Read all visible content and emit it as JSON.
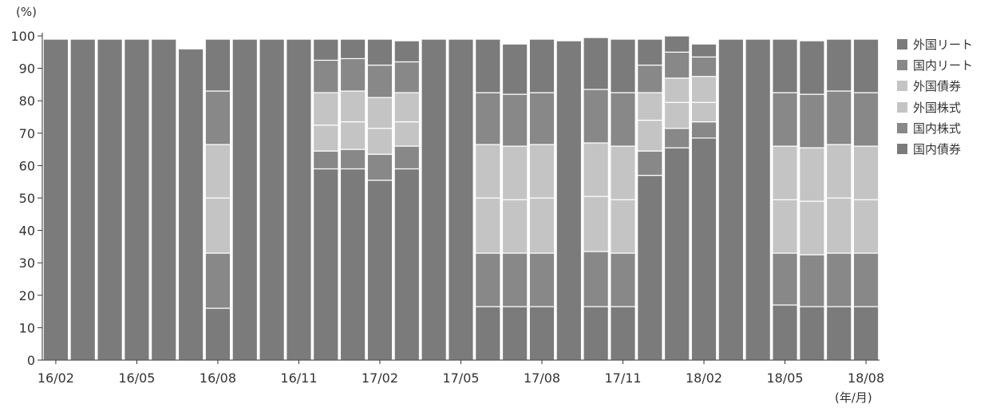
{
  "chart_data": {
    "type": "bar",
    "stacked": true,
    "y_unit": "(%)",
    "x_unit": "(年/月)",
    "ylim": [
      0,
      100
    ],
    "y_ticks": [
      "0",
      "10",
      "20",
      "30",
      "40",
      "50",
      "60",
      "70",
      "80",
      "90",
      "100"
    ],
    "x_tick_labels": [
      {
        "index": 0,
        "label": "16/02"
      },
      {
        "index": 3,
        "label": "16/05"
      },
      {
        "index": 6,
        "label": "16/08"
      },
      {
        "index": 9,
        "label": "16/11"
      },
      {
        "index": 12,
        "label": "17/02"
      },
      {
        "index": 15,
        "label": "17/05"
      },
      {
        "index": 18,
        "label": "17/08"
      },
      {
        "index": 21,
        "label": "17/11"
      },
      {
        "index": 24,
        "label": "18/02"
      },
      {
        "index": 27,
        "label": "18/05"
      },
      {
        "index": 30,
        "label": "18/08"
      }
    ],
    "categories": [
      "16/02",
      "16/03",
      "16/04",
      "16/05",
      "16/06",
      "16/07",
      "16/08",
      "16/09",
      "16/10",
      "16/11",
      "16/12",
      "17/01",
      "17/02",
      "17/03",
      "17/04",
      "17/05",
      "17/06",
      "17/07",
      "17/08",
      "17/09",
      "17/10",
      "17/11",
      "17/12",
      "18/01",
      "18/02",
      "18/03",
      "18/04",
      "18/05",
      "18/06",
      "18/07",
      "18/08"
    ],
    "legend_position": "right",
    "series": [
      {
        "name": "国内債券",
        "color": "#7b7b7b",
        "values": [
          99,
          99,
          99,
          99,
          99,
          96,
          16,
          99,
          99,
          99,
          59,
          59,
          55.5,
          59,
          99,
          99,
          16.5,
          16.5,
          16.5,
          98.5,
          16.5,
          16.5,
          57,
          65.5,
          68.5,
          99,
          99,
          17,
          16.5,
          16.5,
          16.5
        ]
      },
      {
        "name": "国内株式",
        "color": "#888888",
        "values": [
          0,
          0,
          0,
          0,
          0,
          0,
          17,
          0,
          0,
          0,
          5.5,
          6,
          8,
          7,
          0,
          0,
          16.5,
          16.5,
          16.5,
          0,
          17,
          16.5,
          7.5,
          6,
          5,
          0,
          0,
          16,
          16,
          16.5,
          16.5
        ]
      },
      {
        "name": "外国株式",
        "color": "#c4c4c4",
        "values": [
          0,
          0,
          0,
          0,
          0,
          0,
          17,
          0,
          0,
          0,
          8,
          8.5,
          8,
          7.5,
          0,
          0,
          17,
          16.5,
          17,
          0,
          17,
          16.5,
          9.5,
          8,
          6,
          0,
          0,
          16.5,
          16.5,
          17,
          16.5
        ]
      },
      {
        "name": "外国債券",
        "color": "#c4c4c4",
        "values": [
          0,
          0,
          0,
          0,
          0,
          0,
          16.5,
          0,
          0,
          0,
          10,
          9.5,
          9.5,
          9,
          0,
          0,
          16.5,
          16.5,
          16.5,
          0,
          16.5,
          16.5,
          8.5,
          7.5,
          8,
          0,
          0,
          16.5,
          16.5,
          16.5,
          16.5
        ]
      },
      {
        "name": "国内リート",
        "color": "#888888",
        "values": [
          0,
          0,
          0,
          0,
          0,
          0,
          16.5,
          0,
          0,
          0,
          10,
          10,
          10,
          9.5,
          0,
          0,
          16,
          16,
          16,
          0,
          16.5,
          16.5,
          8.5,
          8,
          6,
          0,
          0,
          16.5,
          16.5,
          16.5,
          16.5
        ]
      },
      {
        "name": "外国リート",
        "color": "#7b7b7b",
        "values": [
          0,
          0,
          0,
          0,
          0,
          0,
          16,
          0,
          0,
          0,
          6.5,
          6,
          8,
          6.5,
          0,
          0,
          16.5,
          15.5,
          16.5,
          0,
          16,
          16.5,
          8,
          5,
          4,
          0,
          0,
          16.5,
          16.5,
          16,
          16.5
        ]
      }
    ],
    "legend": [
      "外国リート",
      "国内リート",
      "外国債券",
      "外国株式",
      "国内株式",
      "国内債券"
    ],
    "legend_colors": [
      "#7b7b7b",
      "#888888",
      "#c4c4c4",
      "#c4c4c4",
      "#888888",
      "#7b7b7b"
    ]
  }
}
